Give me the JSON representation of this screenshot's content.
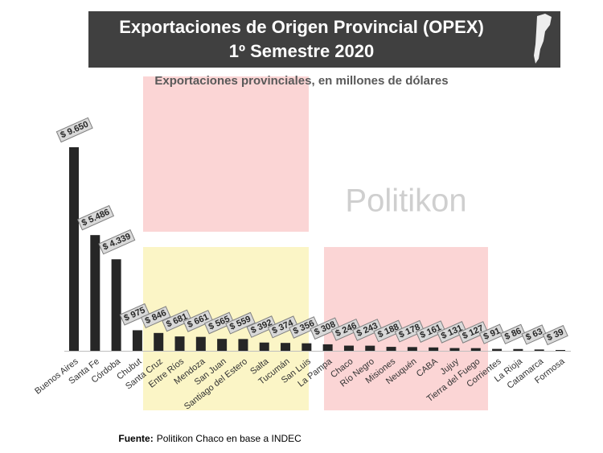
{
  "chart_data": {
    "type": "bar",
    "title": "Exportaciones de Origen Provincial (OPEX)",
    "title_line2": "1º Semestre 2020",
    "subtitle": "Exportaciones provinciales, en millones de dólares",
    "watermark": "Politikon",
    "source_label": "Fuente:",
    "source": "Politikon Chaco en base a INDEC",
    "color": "#262626",
    "categories": [
      "Buenos Aires",
      "Santa Fe",
      "Córdoba",
      "Chubut",
      "Santa Cruz",
      "Entre Ríos",
      "Mendoza",
      "San Juan",
      "Santiago del Estero",
      "Salta",
      "Tucumán",
      "San Luis",
      "La Pampa",
      "Chaco",
      "Río Negro",
      "Misiones",
      "Neuquén",
      "CABA",
      "Jujuy",
      "Tierra del Fuego",
      "Corrientes",
      "La Rioja",
      "Catamarca",
      "Formosa"
    ],
    "values": [
      9650,
      5486,
      4339,
      975,
      846,
      681,
      661,
      565,
      559,
      392,
      374,
      356,
      308,
      246,
      243,
      188,
      178,
      161,
      131,
      127,
      91,
      86,
      63,
      39
    ],
    "value_labels": [
      "$ 9.650",
      "$ 5.486",
      "$ 4.339",
      "$ 975",
      "$ 846",
      "$ 681",
      "$ 661",
      "$ 565",
      "$ 559",
      "$ 392",
      "$ 374",
      "$ 356",
      "$ 308",
      "$ 246",
      "$ 243",
      "$ 188",
      "$ 178",
      "$ 161",
      "$ 131",
      "$ 127",
      "$ 91",
      "$ 86",
      "$ 63",
      "$ 39"
    ]
  }
}
